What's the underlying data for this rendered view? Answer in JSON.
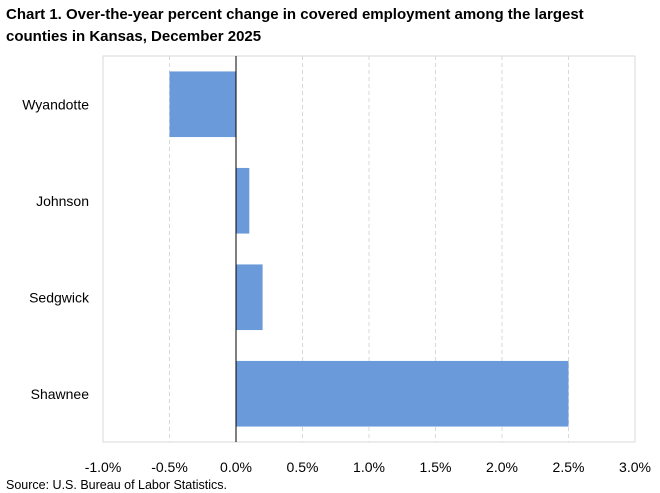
{
  "chart_data": {
    "type": "bar",
    "orientation": "horizontal",
    "title": "Chart 1. Over-the-year percent change in covered employment among the largest counties in Kansas, December 2025",
    "categories": [
      "Wyandotte",
      "Johnson",
      "Sedgwick",
      "Shawnee"
    ],
    "values": [
      -0.5,
      0.1,
      0.2,
      2.5
    ],
    "xlim": [
      -1.0,
      3.0
    ],
    "xticks": [
      -1.0,
      -0.5,
      0.0,
      0.5,
      1.0,
      1.5,
      2.0,
      2.5,
      3.0
    ],
    "tick_labels": [
      "-1.0%",
      "-0.5%",
      "0.0%",
      "0.5%",
      "1.0%",
      "1.5%",
      "2.0%",
      "2.5%",
      "3.0%"
    ],
    "grid": "vertical dashed",
    "legend": "none",
    "bar_color": "#6a9ad9"
  },
  "source": "Source: U.S. Bureau of Labor Statistics."
}
